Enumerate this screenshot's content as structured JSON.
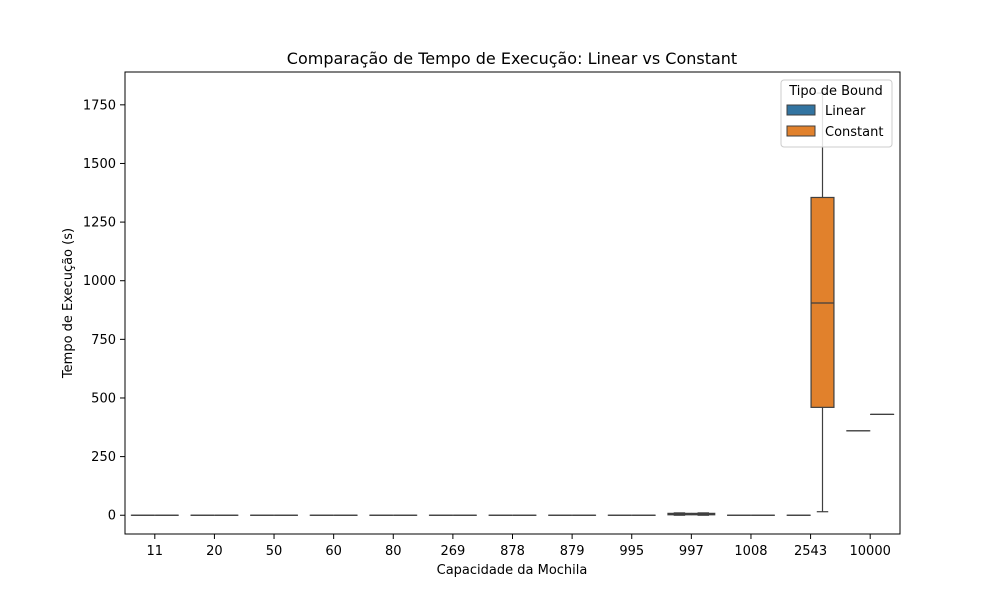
{
  "chart_data": {
    "type": "boxplot",
    "title": "Comparação de Tempo de Execução: Linear vs Constant",
    "xlabel": "Capacidade da Mochila",
    "ylabel": "Tempo de Execução (s)",
    "categories": [
      "11",
      "20",
      "50",
      "60",
      "80",
      "269",
      "878",
      "879",
      "995",
      "997",
      "1008",
      "2543",
      "10000"
    ],
    "ylim": [
      -80,
      1890
    ],
    "yticks": [
      0,
      250,
      500,
      750,
      1000,
      1250,
      1500,
      1750
    ],
    "grid": false,
    "legend": {
      "title": "Tipo de Bound",
      "placement": "top-right"
    },
    "series": [
      {
        "name": "Linear",
        "color": "#3274a1",
        "boxes": [
          {
            "category": "11",
            "whislo": 0,
            "q1": 0,
            "med": 0,
            "q3": 0,
            "whishi": 0
          },
          {
            "category": "20",
            "whislo": 0,
            "q1": 0,
            "med": 0,
            "q3": 0,
            "whishi": 0
          },
          {
            "category": "50",
            "whislo": 0,
            "q1": 0,
            "med": 0,
            "q3": 0,
            "whishi": 0
          },
          {
            "category": "60",
            "whislo": 0,
            "q1": 0,
            "med": 0,
            "q3": 0,
            "whishi": 0
          },
          {
            "category": "80",
            "whislo": 0,
            "q1": 0,
            "med": 0,
            "q3": 0,
            "whishi": 0
          },
          {
            "category": "269",
            "whislo": 0,
            "q1": 0,
            "med": 0,
            "q3": 0,
            "whishi": 0
          },
          {
            "category": "878",
            "whislo": 0,
            "q1": 0,
            "med": 0,
            "q3": 0,
            "whishi": 0
          },
          {
            "category": "879",
            "whislo": 0,
            "q1": 0,
            "med": 0,
            "q3": 0,
            "whishi": 0
          },
          {
            "category": "995",
            "whislo": 0,
            "q1": 0,
            "med": 0,
            "q3": 0,
            "whishi": 0
          },
          {
            "category": "997",
            "whislo": 0,
            "q1": 2,
            "med": 5,
            "q3": 8,
            "whishi": 10
          },
          {
            "category": "1008",
            "whislo": 0,
            "q1": 0,
            "med": 0,
            "q3": 0,
            "whishi": 0
          },
          {
            "category": "2543",
            "whislo": 0,
            "q1": 0,
            "med": 0,
            "q3": 0,
            "whishi": 0
          },
          {
            "category": "10000",
            "whislo": 360,
            "q1": 360,
            "med": 360,
            "q3": 360,
            "whishi": 360
          }
        ]
      },
      {
        "name": "Constant",
        "color": "#e1812c",
        "boxes": [
          {
            "category": "11",
            "whislo": 0,
            "q1": 0,
            "med": 0,
            "q3": 0,
            "whishi": 0
          },
          {
            "category": "20",
            "whislo": 0,
            "q1": 0,
            "med": 0,
            "q3": 0,
            "whishi": 0
          },
          {
            "category": "50",
            "whislo": 0,
            "q1": 0,
            "med": 0,
            "q3": 0,
            "whishi": 0
          },
          {
            "category": "60",
            "whislo": 0,
            "q1": 0,
            "med": 0,
            "q3": 0,
            "whishi": 0
          },
          {
            "category": "80",
            "whislo": 0,
            "q1": 0,
            "med": 0,
            "q3": 0,
            "whishi": 0
          },
          {
            "category": "269",
            "whislo": 0,
            "q1": 0,
            "med": 0,
            "q3": 0,
            "whishi": 0
          },
          {
            "category": "878",
            "whislo": 0,
            "q1": 0,
            "med": 0,
            "q3": 0,
            "whishi": 0
          },
          {
            "category": "879",
            "whislo": 0,
            "q1": 0,
            "med": 0,
            "q3": 0,
            "whishi": 0
          },
          {
            "category": "995",
            "whislo": 0,
            "q1": 0,
            "med": 0,
            "q3": 0,
            "whishi": 0
          },
          {
            "category": "997",
            "whislo": 0,
            "q1": 2,
            "med": 5,
            "q3": 8,
            "whishi": 10
          },
          {
            "category": "1008",
            "whislo": 0,
            "q1": 0,
            "med": 0,
            "q3": 0,
            "whishi": 0
          },
          {
            "category": "2543",
            "whislo": 15,
            "q1": 460,
            "med": 905,
            "q3": 1355,
            "whishi": 1800
          },
          {
            "category": "10000",
            "whislo": 430,
            "q1": 430,
            "med": 430,
            "q3": 430,
            "whishi": 430
          }
        ]
      }
    ]
  }
}
